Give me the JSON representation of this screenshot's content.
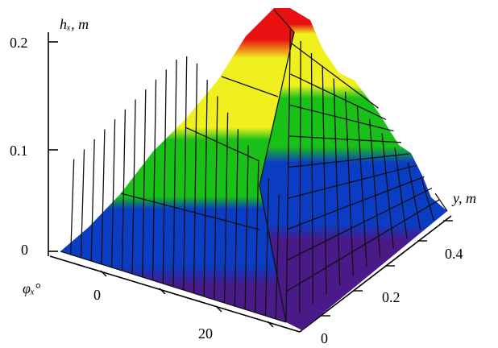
{
  "chart_data": {
    "type": "surface3d",
    "axes": {
      "z": {
        "label": "hₓ, m",
        "ticks": [
          "0.2",
          "0.1",
          "0"
        ],
        "range": [
          0,
          0.22
        ]
      },
      "y": {
        "label": "y, m",
        "ticks": [
          "0",
          "0.2",
          "0.4"
        ],
        "range": [
          0,
          0.5
        ]
      },
      "x": {
        "label": "φₓ°",
        "ticks": [
          "0",
          "20"
        ],
        "range": [
          -5,
          35
        ]
      }
    },
    "colormap": [
      "#4a1a88",
      "#0b3cc4",
      "#18c018",
      "#f0f020",
      "#e81010"
    ],
    "color_bands_m": [
      0,
      0.05,
      0.09,
      0.13,
      0.19,
      0.22
    ]
  }
}
